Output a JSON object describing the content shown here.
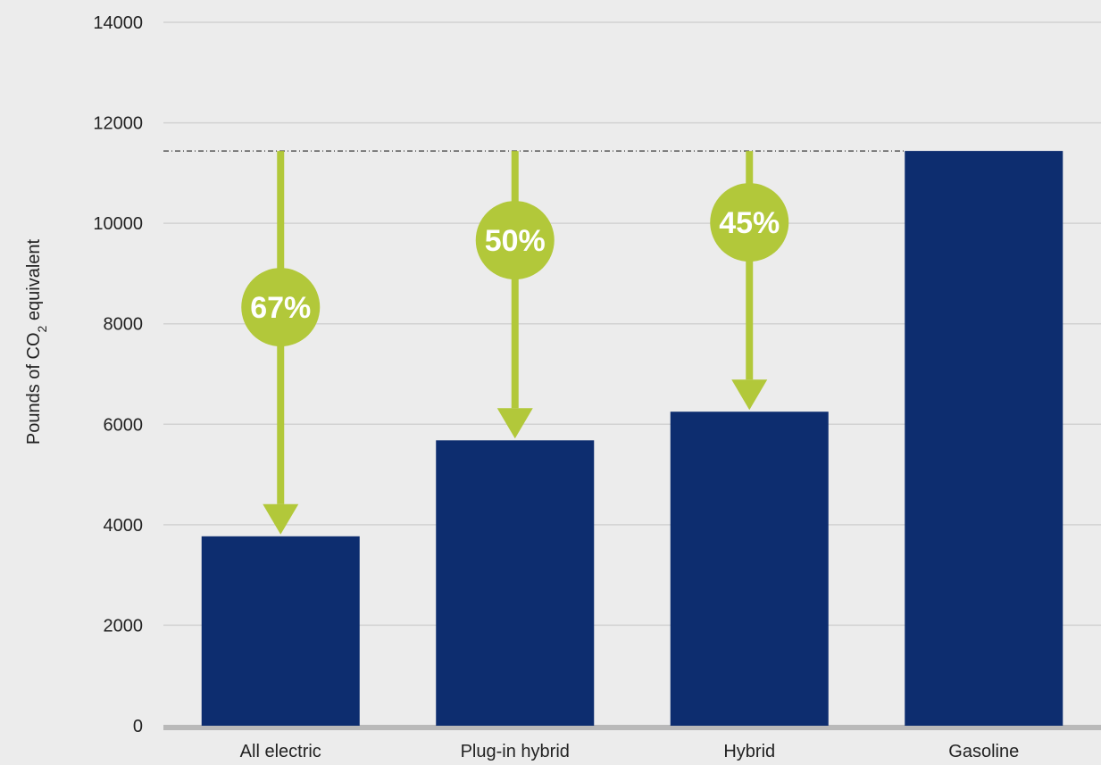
{
  "chart_data": {
    "type": "bar",
    "categories": [
      "All electric",
      "Plug-in hybrid",
      "Hybrid",
      "Gasoline"
    ],
    "values": [
      3770,
      5680,
      6250,
      11440
    ],
    "ylabel_prefix": "Pounds of CO",
    "ylabel_subscript": "2",
    "ylabel_suffix": " equivalent",
    "ylim": [
      0,
      14000
    ],
    "yticks": [
      "0",
      "2000",
      "4000",
      "6000",
      "8000",
      "10000",
      "12000",
      "14000"
    ],
    "grid": true,
    "reference_line_value": 11440,
    "reductions": [
      {
        "category": "All electric",
        "label": "67%"
      },
      {
        "category": "Plug-in hybrid",
        "label": "50%"
      },
      {
        "category": "Hybrid",
        "label": "45%"
      }
    ],
    "colors": {
      "bar": "#0d2d6f",
      "arrow": "#b2c83a",
      "grid": "#d2d2d2",
      "baseline": "#b9b9b9",
      "background": "#ececec",
      "reference_line": "#333333"
    }
  }
}
